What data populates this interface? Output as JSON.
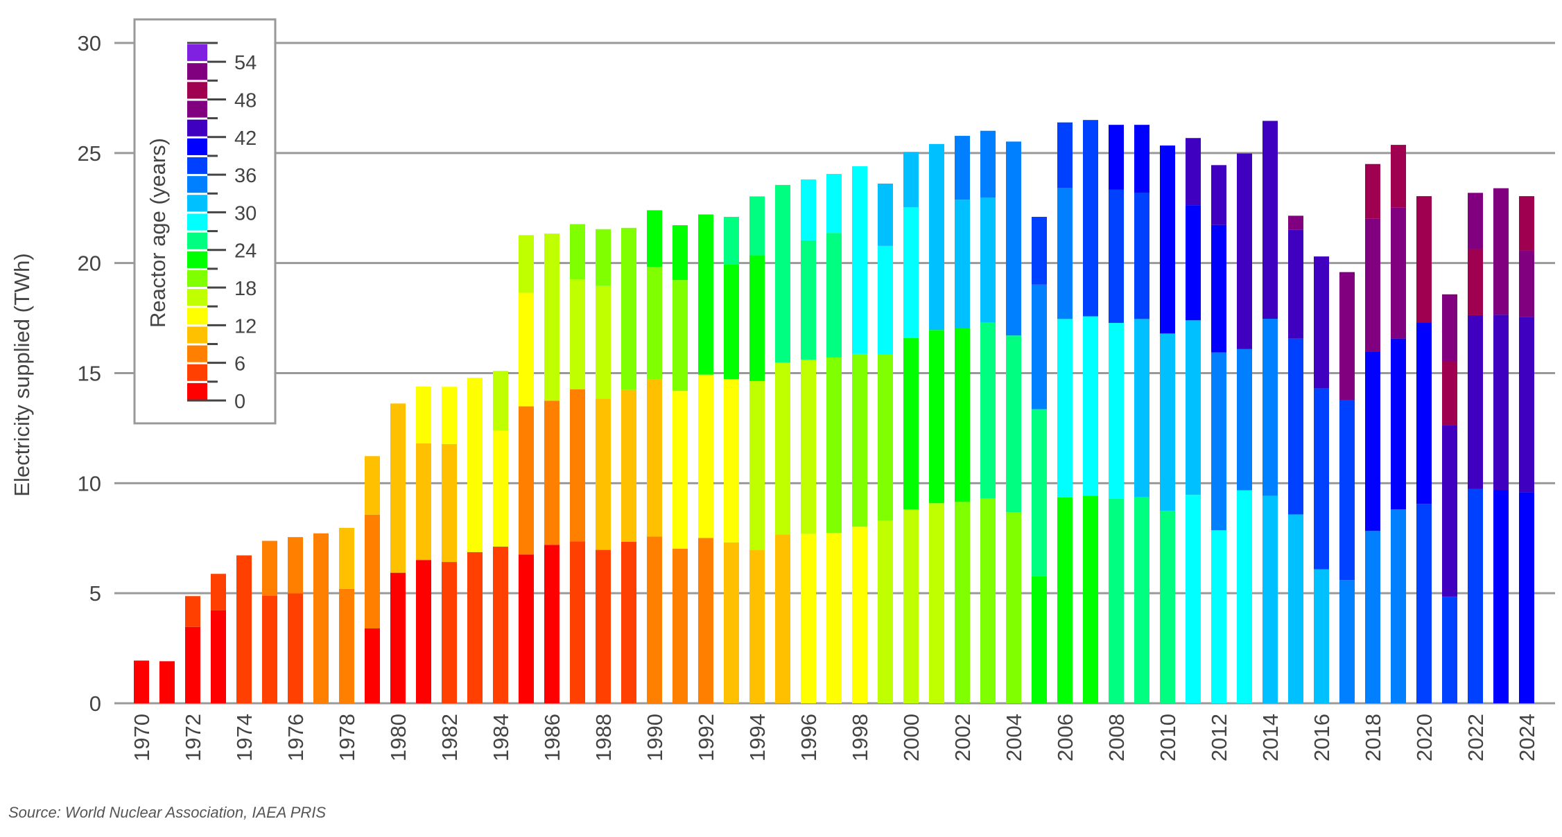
{
  "chart_data": {
    "type": "bar",
    "stacked": true,
    "ylabel": "Electricity supplied (TWh)",
    "xlabel": "",
    "ylim": [
      0,
      30
    ],
    "yticks": [
      0,
      5,
      10,
      15,
      20,
      25,
      30
    ],
    "grid": "horizontal",
    "legend": {
      "title": "Reactor age (years)",
      "placement": "top-left",
      "tick_labels": [
        "0",
        "6",
        "12",
        "18",
        "24",
        "30",
        "36",
        "42",
        "48",
        "54"
      ]
    },
    "age_bin_colors": {
      "0": "#ff0000",
      "3": "#ff4000",
      "6": "#ff8000",
      "9": "#ffc000",
      "12": "#ffff00",
      "15": "#c0ff00",
      "18": "#80ff00",
      "21": "#00ff00",
      "24": "#00ff80",
      "27": "#00ffff",
      "30": "#00c0ff",
      "33": "#0080ff",
      "36": "#0040ff",
      "39": "#0000ff",
      "42": "#4000c0",
      "45": "#800080",
      "48": "#a00050",
      "51": "#800080",
      "54": "#8020e0"
    },
    "bars": [
      {
        "year": 1970,
        "segments": [
          [
            0,
            1.94
          ]
        ]
      },
      {
        "year": 1971,
        "segments": [
          [
            0,
            1.91
          ]
        ]
      },
      {
        "year": 1972,
        "segments": [
          [
            0,
            3.47
          ],
          [
            3,
            1.4
          ]
        ]
      },
      {
        "year": 1973,
        "segments": [
          [
            0,
            4.22
          ],
          [
            3,
            1.66
          ]
        ]
      },
      {
        "year": 1974,
        "segments": [
          [
            3,
            6.72
          ]
        ]
      },
      {
        "year": 1975,
        "segments": [
          [
            3,
            4.88
          ],
          [
            6,
            2.5
          ]
        ]
      },
      {
        "year": 1976,
        "segments": [
          [
            3,
            4.99
          ],
          [
            6,
            2.56
          ]
        ]
      },
      {
        "year": 1977,
        "segments": [
          [
            6,
            7.72
          ]
        ]
      },
      {
        "year": 1978,
        "segments": [
          [
            6,
            5.2
          ],
          [
            9,
            2.77
          ]
        ]
      },
      {
        "year": 1979,
        "segments": [
          [
            0,
            3.4
          ],
          [
            6,
            5.17
          ],
          [
            9,
            2.66
          ]
        ]
      },
      {
        "year": 1980,
        "segments": [
          [
            0,
            5.93
          ],
          [
            9,
            7.69
          ]
        ]
      },
      {
        "year": 1981,
        "segments": [
          [
            0,
            6.51
          ],
          [
            9,
            5.3
          ],
          [
            12,
            2.58
          ]
        ]
      },
      {
        "year": 1982,
        "segments": [
          [
            3,
            6.42
          ],
          [
            9,
            5.36
          ],
          [
            12,
            2.6
          ]
        ]
      },
      {
        "year": 1983,
        "segments": [
          [
            3,
            6.87
          ],
          [
            12,
            7.92
          ]
        ]
      },
      {
        "year": 1984,
        "segments": [
          [
            3,
            7.12
          ],
          [
            12,
            5.26
          ],
          [
            15,
            2.72
          ]
        ]
      },
      {
        "year": 1985,
        "segments": [
          [
            0,
            6.76
          ],
          [
            6,
            6.73
          ],
          [
            12,
            5.16
          ],
          [
            15,
            2.62
          ]
        ]
      },
      {
        "year": 1986,
        "segments": [
          [
            0,
            7.2
          ],
          [
            6,
            6.55
          ],
          [
            15,
            7.59
          ]
        ]
      },
      {
        "year": 1987,
        "segments": [
          [
            3,
            7.36
          ],
          [
            6,
            6.91
          ],
          [
            15,
            4.99
          ],
          [
            18,
            2.51
          ]
        ]
      },
      {
        "year": 1988,
        "segments": [
          [
            3,
            6.97
          ],
          [
            9,
            6.87
          ],
          [
            15,
            5.12
          ],
          [
            18,
            2.58
          ]
        ]
      },
      {
        "year": 1989,
        "segments": [
          [
            3,
            7.34
          ],
          [
            9,
            6.9
          ],
          [
            18,
            7.36
          ]
        ]
      },
      {
        "year": 1990,
        "segments": [
          [
            6,
            7.57
          ],
          [
            9,
            7.15
          ],
          [
            18,
            5.11
          ],
          [
            21,
            2.57
          ]
        ]
      },
      {
        "year": 1991,
        "segments": [
          [
            6,
            7.02
          ],
          [
            12,
            7.17
          ],
          [
            18,
            5.04
          ],
          [
            21,
            2.49
          ]
        ]
      },
      {
        "year": 1992,
        "segments": [
          [
            6,
            7.51
          ],
          [
            12,
            7.42
          ],
          [
            21,
            7.28
          ]
        ]
      },
      {
        "year": 1993,
        "segments": [
          [
            9,
            7.31
          ],
          [
            12,
            7.42
          ],
          [
            21,
            5.21
          ],
          [
            24,
            2.16
          ]
        ]
      },
      {
        "year": 1994,
        "segments": [
          [
            9,
            6.97
          ],
          [
            15,
            7.67
          ],
          [
            21,
            5.71
          ],
          [
            24,
            2.68
          ]
        ]
      },
      {
        "year": 1995,
        "segments": [
          [
            9,
            7.67
          ],
          [
            15,
            7.81
          ],
          [
            24,
            8.07
          ]
        ]
      },
      {
        "year": 1996,
        "segments": [
          [
            12,
            7.7
          ],
          [
            15,
            7.91
          ],
          [
            24,
            5.42
          ],
          [
            27,
            2.77
          ]
        ]
      },
      {
        "year": 1997,
        "segments": [
          [
            12,
            7.74
          ],
          [
            18,
            7.97
          ],
          [
            24,
            5.66
          ],
          [
            27,
            2.68
          ]
        ]
      },
      {
        "year": 1998,
        "segments": [
          [
            12,
            8.02
          ],
          [
            18,
            7.85
          ],
          [
            27,
            8.53
          ]
        ]
      },
      {
        "year": 1999,
        "segments": [
          [
            15,
            8.31
          ],
          [
            18,
            7.54
          ],
          [
            27,
            4.93
          ],
          [
            30,
            2.83
          ]
        ]
      },
      {
        "year": 2000,
        "segments": [
          [
            15,
            8.81
          ],
          [
            21,
            7.79
          ],
          [
            27,
            5.93
          ],
          [
            30,
            2.52
          ]
        ]
      },
      {
        "year": 2001,
        "segments": [
          [
            15,
            9.09
          ],
          [
            21,
            7.87
          ],
          [
            30,
            8.45
          ]
        ]
      },
      {
        "year": 2002,
        "segments": [
          [
            18,
            9.15
          ],
          [
            21,
            7.88
          ],
          [
            30,
            5.85
          ],
          [
            33,
            2.9
          ]
        ]
      },
      {
        "year": 2003,
        "segments": [
          [
            18,
            9.31
          ],
          [
            24,
            7.99
          ],
          [
            30,
            5.67
          ],
          [
            33,
            3.04
          ]
        ]
      },
      {
        "year": 2004,
        "segments": [
          [
            18,
            8.68
          ],
          [
            24,
            8.03
          ],
          [
            33,
            8.81
          ]
        ]
      },
      {
        "year": 2005,
        "segments": [
          [
            21,
            5.77
          ],
          [
            24,
            7.59
          ],
          [
            33,
            5.66
          ],
          [
            36,
            3.08
          ]
        ]
      },
      {
        "year": 2006,
        "segments": [
          [
            21,
            9.36
          ],
          [
            27,
            8.1
          ],
          [
            33,
            5.96
          ],
          [
            36,
            2.97
          ]
        ]
      },
      {
        "year": 2007,
        "segments": [
          [
            21,
            9.43
          ],
          [
            27,
            8.15
          ],
          [
            36,
            8.92
          ]
        ]
      },
      {
        "year": 2008,
        "segments": [
          [
            24,
            9.29
          ],
          [
            27,
            7.99
          ],
          [
            36,
            6.05
          ],
          [
            39,
            2.95
          ]
        ]
      },
      {
        "year": 2009,
        "segments": [
          [
            24,
            9.36
          ],
          [
            30,
            8.1
          ],
          [
            36,
            5.74
          ],
          [
            39,
            3.08
          ]
        ]
      },
      {
        "year": 2010,
        "segments": [
          [
            24,
            8.75
          ],
          [
            30,
            8.05
          ],
          [
            39,
            8.54
          ]
        ]
      },
      {
        "year": 2011,
        "segments": [
          [
            27,
            9.47
          ],
          [
            30,
            7.93
          ],
          [
            39,
            5.23
          ],
          [
            42,
            3.05
          ]
        ]
      },
      {
        "year": 2012,
        "segments": [
          [
            27,
            7.86
          ],
          [
            33,
            8.08
          ],
          [
            39,
            5.79
          ],
          [
            42,
            2.72
          ]
        ]
      },
      {
        "year": 2013,
        "segments": [
          [
            27,
            9.68
          ],
          [
            33,
            6.41
          ],
          [
            42,
            8.89
          ]
        ]
      },
      {
        "year": 2014,
        "segments": [
          [
            30,
            9.43
          ],
          [
            33,
            8.04
          ],
          [
            42,
            8.99
          ]
        ]
      },
      {
        "year": 2015,
        "segments": [
          [
            30,
            8.58
          ],
          [
            36,
            7.99
          ],
          [
            42,
            4.94
          ],
          [
            45,
            0.64
          ]
        ]
      },
      {
        "year": 2016,
        "segments": [
          [
            30,
            6.09
          ],
          [
            36,
            8.22
          ],
          [
            42,
            5.99
          ]
        ]
      },
      {
        "year": 2017,
        "segments": [
          [
            33,
            5.6
          ],
          [
            36,
            8.17
          ],
          [
            45,
            5.82
          ]
        ]
      },
      {
        "year": 2018,
        "segments": [
          [
            33,
            7.83
          ],
          [
            39,
            8.13
          ],
          [
            45,
            6.05
          ],
          [
            48,
            2.49
          ]
        ]
      },
      {
        "year": 2019,
        "segments": [
          [
            33,
            8.81
          ],
          [
            39,
            7.76
          ],
          [
            45,
            5.96
          ],
          [
            48,
            2.84
          ]
        ]
      },
      {
        "year": 2020,
        "segments": [
          [
            36,
            9.06
          ],
          [
            39,
            8.24
          ],
          [
            48,
            5.74
          ]
        ]
      },
      {
        "year": 2021,
        "segments": [
          [
            36,
            4.84
          ],
          [
            42,
            7.81
          ],
          [
            48,
            2.87
          ],
          [
            51,
            3.06
          ]
        ]
      },
      {
        "year": 2022,
        "segments": [
          [
            36,
            9.73
          ],
          [
            42,
            7.9
          ],
          [
            48,
            2.99
          ],
          [
            51,
            2.57
          ]
        ]
      },
      {
        "year": 2023,
        "segments": [
          [
            39,
            9.68
          ],
          [
            42,
            7.97
          ],
          [
            45,
            5.75
          ]
        ]
      },
      {
        "year": 2024,
        "segments": [
          [
            39,
            9.59
          ],
          [
            42,
            7.97
          ],
          [
            45,
            3.01
          ],
          [
            48,
            2.47
          ]
        ]
      }
    ],
    "xtick_labels": [
      "1970",
      "1972",
      "1974",
      "1976",
      "1978",
      "1980",
      "1982",
      "1984",
      "1986",
      "1988",
      "1990",
      "1992",
      "1994",
      "1996",
      "1998",
      "2000",
      "2002",
      "2004",
      "2006",
      "2008",
      "2010",
      "2012",
      "2014",
      "2016",
      "2018",
      "2020",
      "2022",
      "2024"
    ]
  },
  "source": "Source: World Nuclear Association, IAEA PRIS"
}
